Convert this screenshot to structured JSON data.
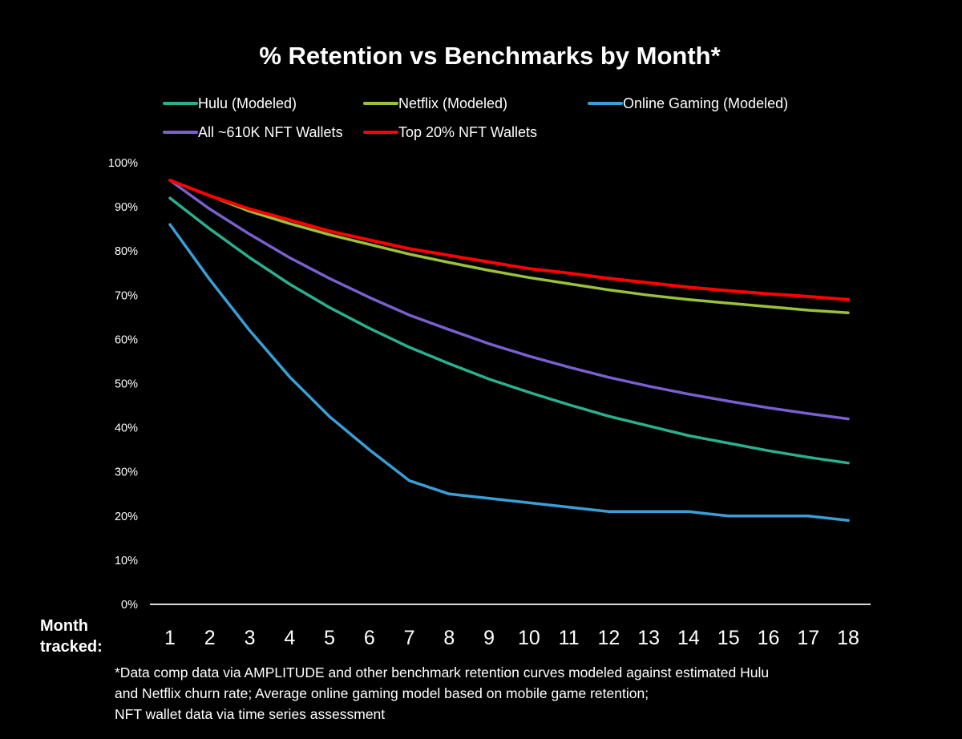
{
  "chart_data": {
    "type": "line",
    "title": "% Retention vs Benchmarks by Month*",
    "xlabel": "Month tracked:",
    "xlabel_lines": [
      "Month",
      "tracked:"
    ],
    "ylabel": "",
    "x": [
      1,
      2,
      3,
      4,
      5,
      6,
      7,
      8,
      9,
      10,
      11,
      12,
      13,
      14,
      15,
      16,
      17,
      18
    ],
    "ylim": [
      0,
      100
    ],
    "yticks": [
      0,
      10,
      20,
      30,
      40,
      50,
      60,
      70,
      80,
      90,
      100
    ],
    "ytick_labels": [
      "0%",
      "10%",
      "20%",
      "30%",
      "40%",
      "50%",
      "60%",
      "70%",
      "80%",
      "90%",
      "100%"
    ],
    "grid": false,
    "legend_position": "top",
    "series": [
      {
        "name": "Hulu (Modeled)",
        "color": "#2BB08F",
        "values": [
          92,
          85,
          78.5,
          72.5,
          67.2,
          62.5,
          58.2,
          54.5,
          51,
          48,
          45.2,
          42.6,
          40.4,
          38.2,
          36.5,
          34.8,
          33.3,
          32
        ]
      },
      {
        "name": "Netflix (Modeled)",
        "color": "#9BC13C",
        "values": [
          96,
          92.5,
          89,
          86.2,
          83.7,
          81.5,
          79.3,
          77.4,
          75.6,
          74,
          72.6,
          71.2,
          70,
          69,
          68.2,
          67.4,
          66.6,
          66
        ]
      },
      {
        "name": "Online Gaming (Modeled)",
        "color": "#3A9FD6",
        "values": [
          86,
          73.5,
          62,
          51.5,
          42.5,
          35,
          28,
          25,
          24,
          23,
          22,
          21,
          21,
          21,
          20,
          20,
          20,
          19
        ]
      },
      {
        "name": "All ~610K NFT Wallets",
        "color": "#7B5FCF",
        "values": [
          96,
          89.5,
          83.8,
          78.5,
          73.8,
          69.5,
          65.5,
          62.2,
          59,
          56.2,
          53.7,
          51.4,
          49.4,
          47.6,
          46,
          44.5,
          43.2,
          42
        ]
      },
      {
        "name": "Top 20% NFT Wallets",
        "color": "#FF0000",
        "values": [
          96,
          92.5,
          89.5,
          87,
          84.5,
          82.5,
          80.5,
          79,
          77.5,
          76,
          75,
          73.8,
          72.8,
          71.8,
          71,
          70.3,
          69.7,
          69
        ]
      }
    ],
    "footnote": [
      "*Data comp data via AMPLITUDE and other benchmark retention curves modeled against estimated Hulu",
      "and Netflix churn rate; Average online gaming model based on mobile game retention;",
      "NFT wallet data via time series assessment"
    ]
  }
}
